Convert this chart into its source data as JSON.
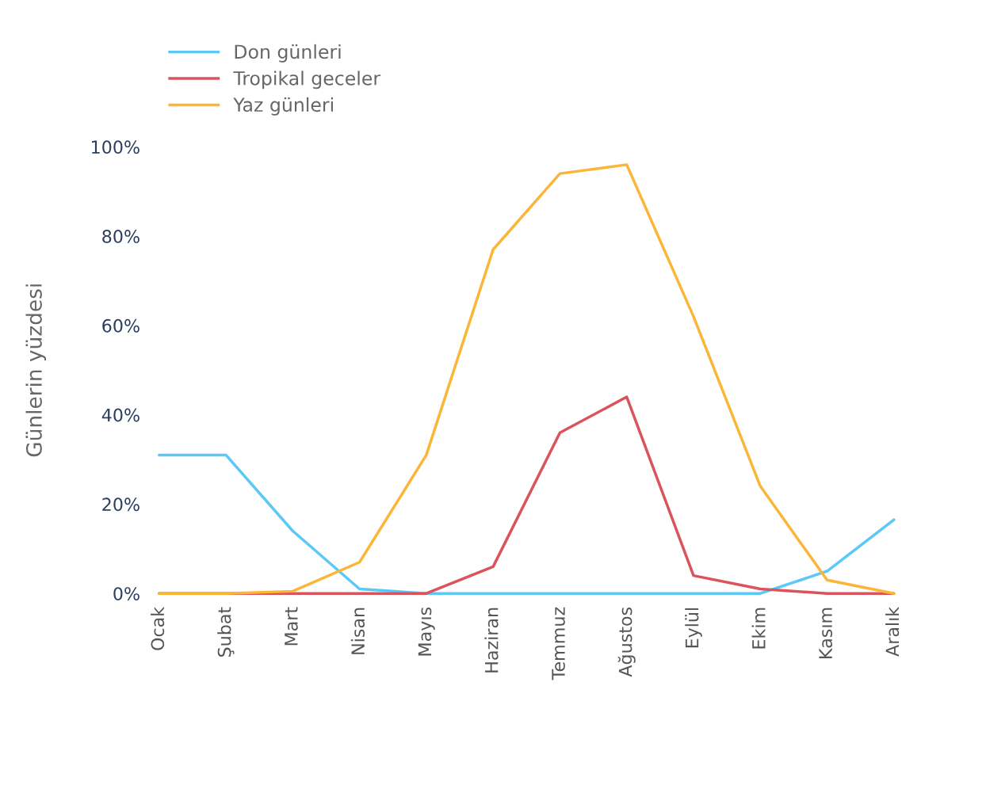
{
  "chart_data": {
    "type": "line",
    "ylabel": "Günlerin yüzdesi",
    "categories": [
      "Ocak",
      "Şubat",
      "Mart",
      "Nisan",
      "Mayıs",
      "Haziran",
      "Temmuz",
      "Ağustos",
      "Eylül",
      "Ekim",
      "Kasım",
      "Aralık"
    ],
    "series": [
      {
        "name": "Don günleri",
        "color": "#5bc8f5",
        "values": [
          31,
          31,
          14,
          1,
          0,
          0,
          0,
          0,
          0,
          0,
          5,
          16.5
        ]
      },
      {
        "name": "Tropikal geceler",
        "color": "#d9545c",
        "values": [
          0,
          0,
          0,
          0,
          0,
          6,
          36,
          44,
          4,
          1,
          0,
          0
        ]
      },
      {
        "name": "Yaz günleri",
        "color": "#fbb638",
        "values": [
          0,
          0,
          0.5,
          7,
          31,
          77,
          94,
          96,
          62,
          24,
          3,
          0
        ]
      }
    ],
    "ylim": [
      0,
      100
    ],
    "yticks": [
      {
        "value": 0,
        "label": "0%"
      },
      {
        "value": 20,
        "label": "20%"
      },
      {
        "value": 40,
        "label": "40%"
      },
      {
        "value": 60,
        "label": "60%"
      },
      {
        "value": 80,
        "label": "80%"
      },
      {
        "value": 100,
        "label": "100%"
      }
    ],
    "grid": false,
    "legend": "top left",
    "marker": "none",
    "line_style": "solid"
  }
}
